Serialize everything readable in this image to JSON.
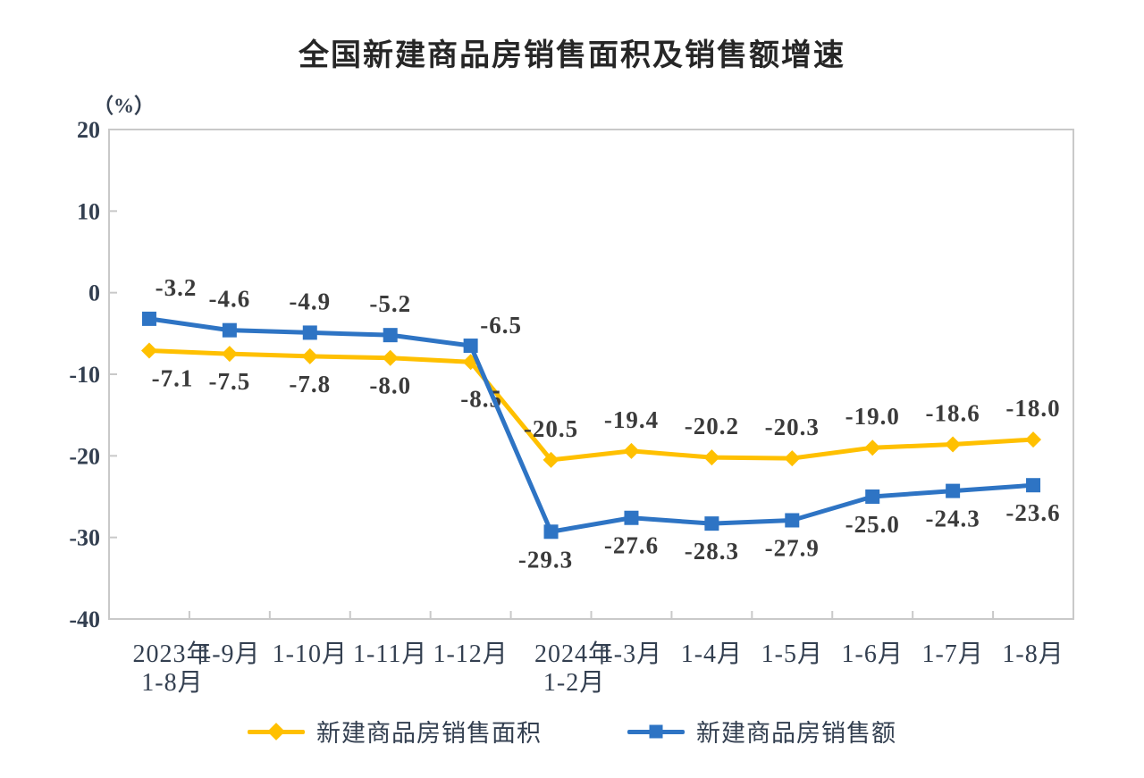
{
  "chart_data": {
    "type": "line",
    "title": "全国新建商品房销售面积及销售额增速",
    "unit_label": "（%）",
    "categories": [
      [
        "2023年",
        "1-8月"
      ],
      [
        "1-9月"
      ],
      [
        "1-10月"
      ],
      [
        "1-11月"
      ],
      [
        "1-12月"
      ],
      [
        "2024年",
        "1-2月"
      ],
      [
        "1-3月"
      ],
      [
        "1-4月"
      ],
      [
        "1-5月"
      ],
      [
        "1-6月"
      ],
      [
        "1-7月"
      ],
      [
        "1-8月"
      ]
    ],
    "series": [
      {
        "name": "新建商品房销售面积",
        "color": "#FFC000",
        "marker": "diamond",
        "values": [
          -7.1,
          -7.5,
          -7.8,
          -8.0,
          -8.5,
          -20.5,
          -19.4,
          -20.2,
          -20.3,
          -19.0,
          -18.6,
          -18.0
        ],
        "label_sides": [
          "below",
          "below",
          "below",
          "below",
          "below",
          "above",
          "above",
          "above",
          "above",
          "above",
          "above",
          "above"
        ]
      },
      {
        "name": "新建商品房销售额",
        "color": "#2E74C4",
        "marker": "square",
        "values": [
          -3.2,
          -4.6,
          -4.9,
          -5.2,
          -6.5,
          -29.3,
          -27.6,
          -28.3,
          -27.9,
          -25.0,
          -24.3,
          -23.6
        ],
        "label_sides": [
          "above",
          "above",
          "above",
          "above",
          "above",
          "below",
          "below",
          "below",
          "below",
          "below",
          "below",
          "below"
        ]
      }
    ],
    "ylim": [
      -40,
      20
    ],
    "ytick_step": 10,
    "yticks": [
      20,
      10,
      0,
      -10,
      -20,
      -30,
      -40
    ],
    "grid": false,
    "legend_position": "bottom",
    "colors": {
      "axis_line": "#C9C9C9",
      "axis_label": "#333F50",
      "data_label": "#3B3B3B",
      "title": "#262626",
      "background": "#FFFFFF"
    }
  }
}
